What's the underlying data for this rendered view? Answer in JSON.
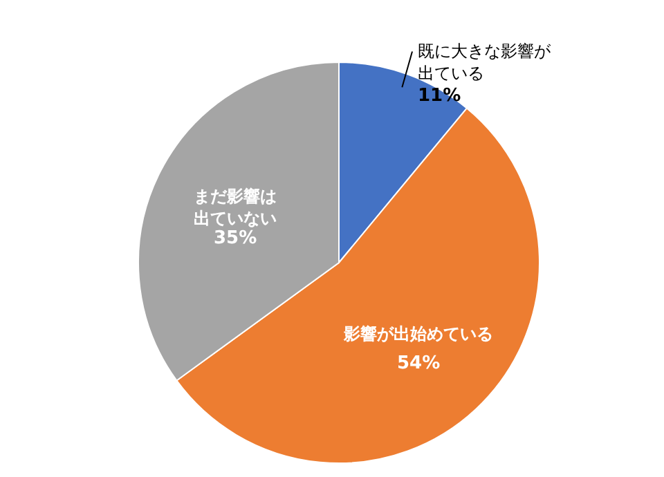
{
  "chart_data": {
    "type": "pie",
    "categories": [
      "既に大きな影響が出ている",
      "影響が出始めている",
      "まだ影響は出ていない"
    ],
    "values": [
      11,
      54,
      35
    ],
    "colors": [
      "#4472c4",
      "#ed7d31",
      "#a5a5a5"
    ],
    "value_labels": [
      "11%",
      "54%",
      "35%"
    ]
  }
}
